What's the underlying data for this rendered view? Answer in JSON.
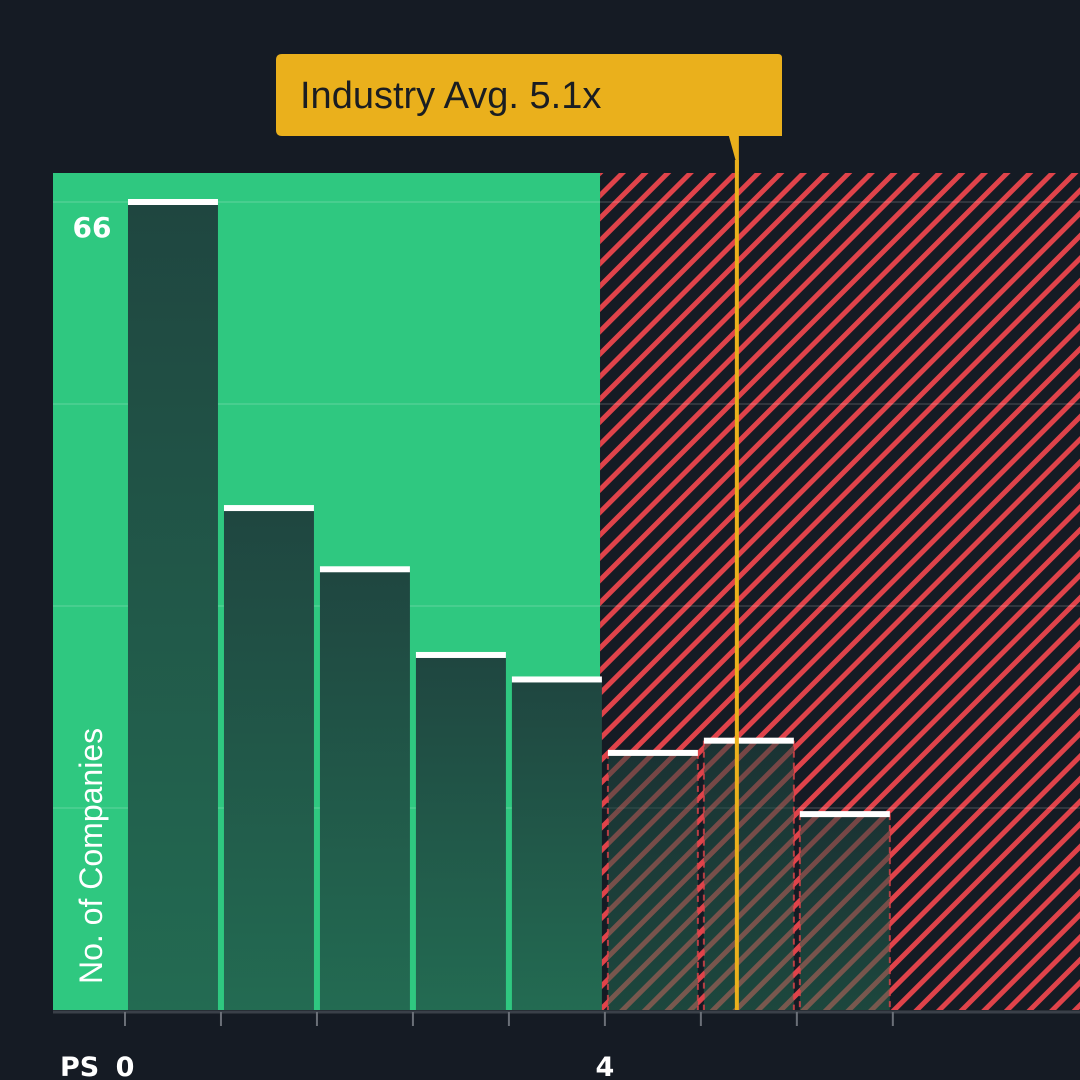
{
  "chart_data": {
    "type": "bar",
    "title": "",
    "ylabel": "No. of Companies",
    "xlabel": "PS",
    "x_ticks": [
      0,
      4
    ],
    "bin_width": 0.8,
    "x_min": -0.6,
    "x_max": 7.96,
    "ylim": [
      0,
      66
    ],
    "max_label": "66",
    "bins": [
      {
        "x_start": 0.0,
        "count": 66
      },
      {
        "x_start": 0.8,
        "count": 41
      },
      {
        "x_start": 1.6,
        "count": 36
      },
      {
        "x_start": 2.4,
        "count": 29
      },
      {
        "x_start": 3.2,
        "count": 27
      },
      {
        "x_start": 4.0,
        "count": 21
      },
      {
        "x_start": 4.8,
        "count": 22
      },
      {
        "x_start": 5.6,
        "count": 16
      }
    ],
    "industry_avg": {
      "value": 5.1,
      "label": "Industry Avg. 5.1x"
    },
    "good_zone_end": 3.96,
    "colors": {
      "background": "#151b24",
      "good_zone": "#2fc880",
      "bad_zone_stripe": "#e0434a",
      "bar_fill_top": "#1f4640",
      "bar_fill_bottom": "#236b52",
      "bar_top_line": "#ffffff",
      "industry_avg": "#eab01c",
      "axis": "#3a4049"
    }
  }
}
